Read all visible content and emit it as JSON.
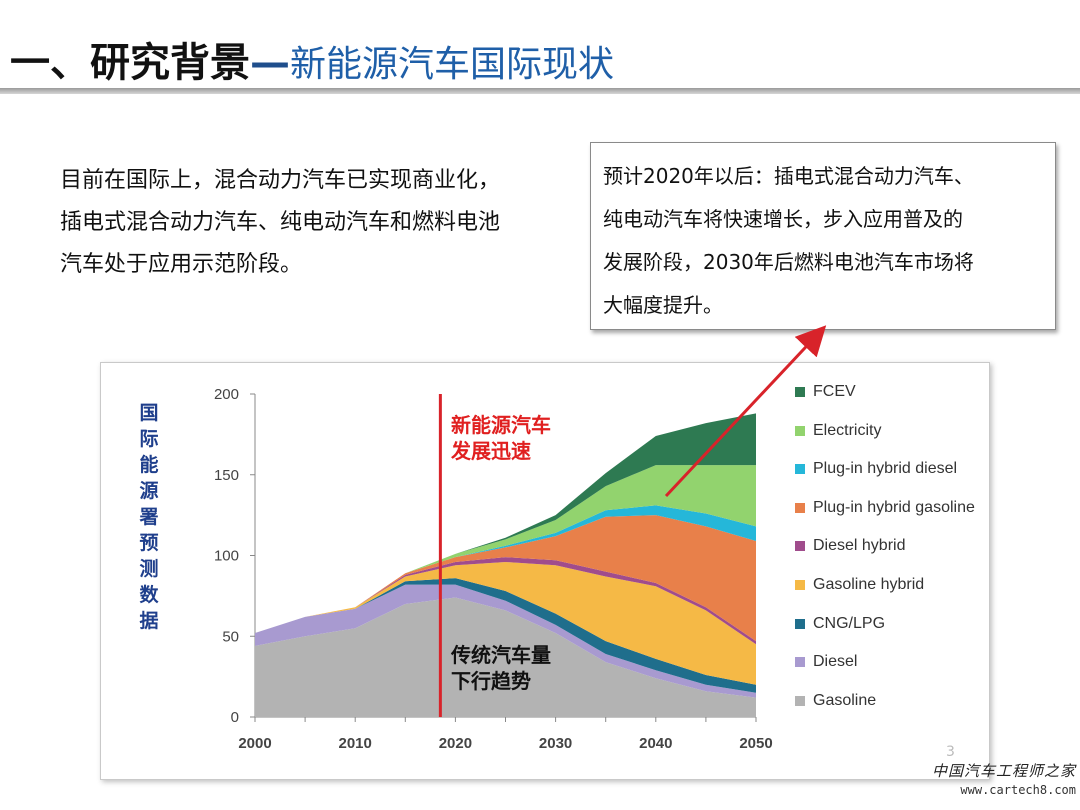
{
  "title": {
    "main": "一、研究背景",
    "dash": "—",
    "sub": "新能源汽车国际现状"
  },
  "intro": {
    "lines": [
      "目前在国际上，混合动力汽车已实现商业化，",
      "插电式混合动力汽车、纯电动汽车和燃料电池",
      "汽车处于应用示范阶段。"
    ]
  },
  "callout": {
    "lines": [
      "预计2020年以后：插电式混合动力汽车、",
      "纯电动汽车将快速增长，步入应用普及的",
      "发展阶段，2030年后燃料电池汽车市场将",
      "大幅度提升。"
    ]
  },
  "chart_ylabel": "国际能源署预测数据",
  "chart_data": {
    "type": "area",
    "stacked": true,
    "x": [
      2000,
      2005,
      2010,
      2015,
      2020,
      2025,
      2030,
      2035,
      2040,
      2045,
      2050
    ],
    "xticks": [
      "2000",
      "2010",
      "2020",
      "2030",
      "2040",
      "2050"
    ],
    "yticks": [
      "0",
      "50",
      "100",
      "150",
      "200"
    ],
    "xlim": [
      2000,
      2050
    ],
    "ylim": [
      0,
      200
    ],
    "grid": false,
    "legend_position": "right",
    "series": [
      {
        "name": "Gasoline",
        "color": "#b3b3b3",
        "values": [
          44,
          50,
          55,
          70,
          74,
          66,
          52,
          34,
          24,
          16,
          12
        ]
      },
      {
        "name": "Diesel",
        "color": "#a89ad0",
        "values": [
          8,
          12,
          12,
          12,
          8,
          6,
          5,
          5,
          5,
          4,
          3
        ]
      },
      {
        "name": "CNG/LPG",
        "color": "#1f6e8c",
        "values": [
          0,
          0,
          0,
          2,
          4,
          6,
          7,
          8,
          7,
          6,
          5
        ]
      },
      {
        "name": "Gasoline hybrid",
        "color": "#f5b946",
        "values": [
          0,
          0,
          1,
          3,
          8,
          18,
          30,
          40,
          45,
          40,
          25
        ]
      },
      {
        "name": "Diesel hybrid",
        "color": "#a04c8c",
        "values": [
          0,
          0,
          0,
          1,
          2,
          3,
          3,
          3,
          2,
          2,
          2
        ]
      },
      {
        "name": "Plug-in hybrid gasoline",
        "color": "#e8804a",
        "values": [
          0,
          0,
          0,
          1,
          3,
          6,
          15,
          34,
          42,
          50,
          62
        ]
      },
      {
        "name": "Plug-in hybrid diesel",
        "color": "#25b7d9",
        "values": [
          0,
          0,
          0,
          0,
          0,
          1,
          2,
          4,
          6,
          8,
          9
        ]
      },
      {
        "name": "Electricity",
        "color": "#92d36e",
        "values": [
          0,
          0,
          0,
          0,
          2,
          4,
          8,
          15,
          25,
          30,
          38
        ]
      },
      {
        "name": "FCEV",
        "color": "#2e7a52",
        "values": [
          0,
          0,
          0,
          0,
          0,
          1,
          3,
          8,
          18,
          26,
          32
        ]
      }
    ],
    "marker_line": {
      "x": 2018.5,
      "color": "#d8232a"
    },
    "annotations": [
      {
        "text_lines": [
          "新能源汽车",
          "发展迅速"
        ],
        "color": "#e02020"
      },
      {
        "text_lines": [
          "传统汽车量",
          "下行趋势"
        ],
        "color": "#111111"
      }
    ]
  },
  "page_number": "3",
  "watermark": {
    "name": "中国汽车工程师之家",
    "url": "www.cartech8.com"
  }
}
